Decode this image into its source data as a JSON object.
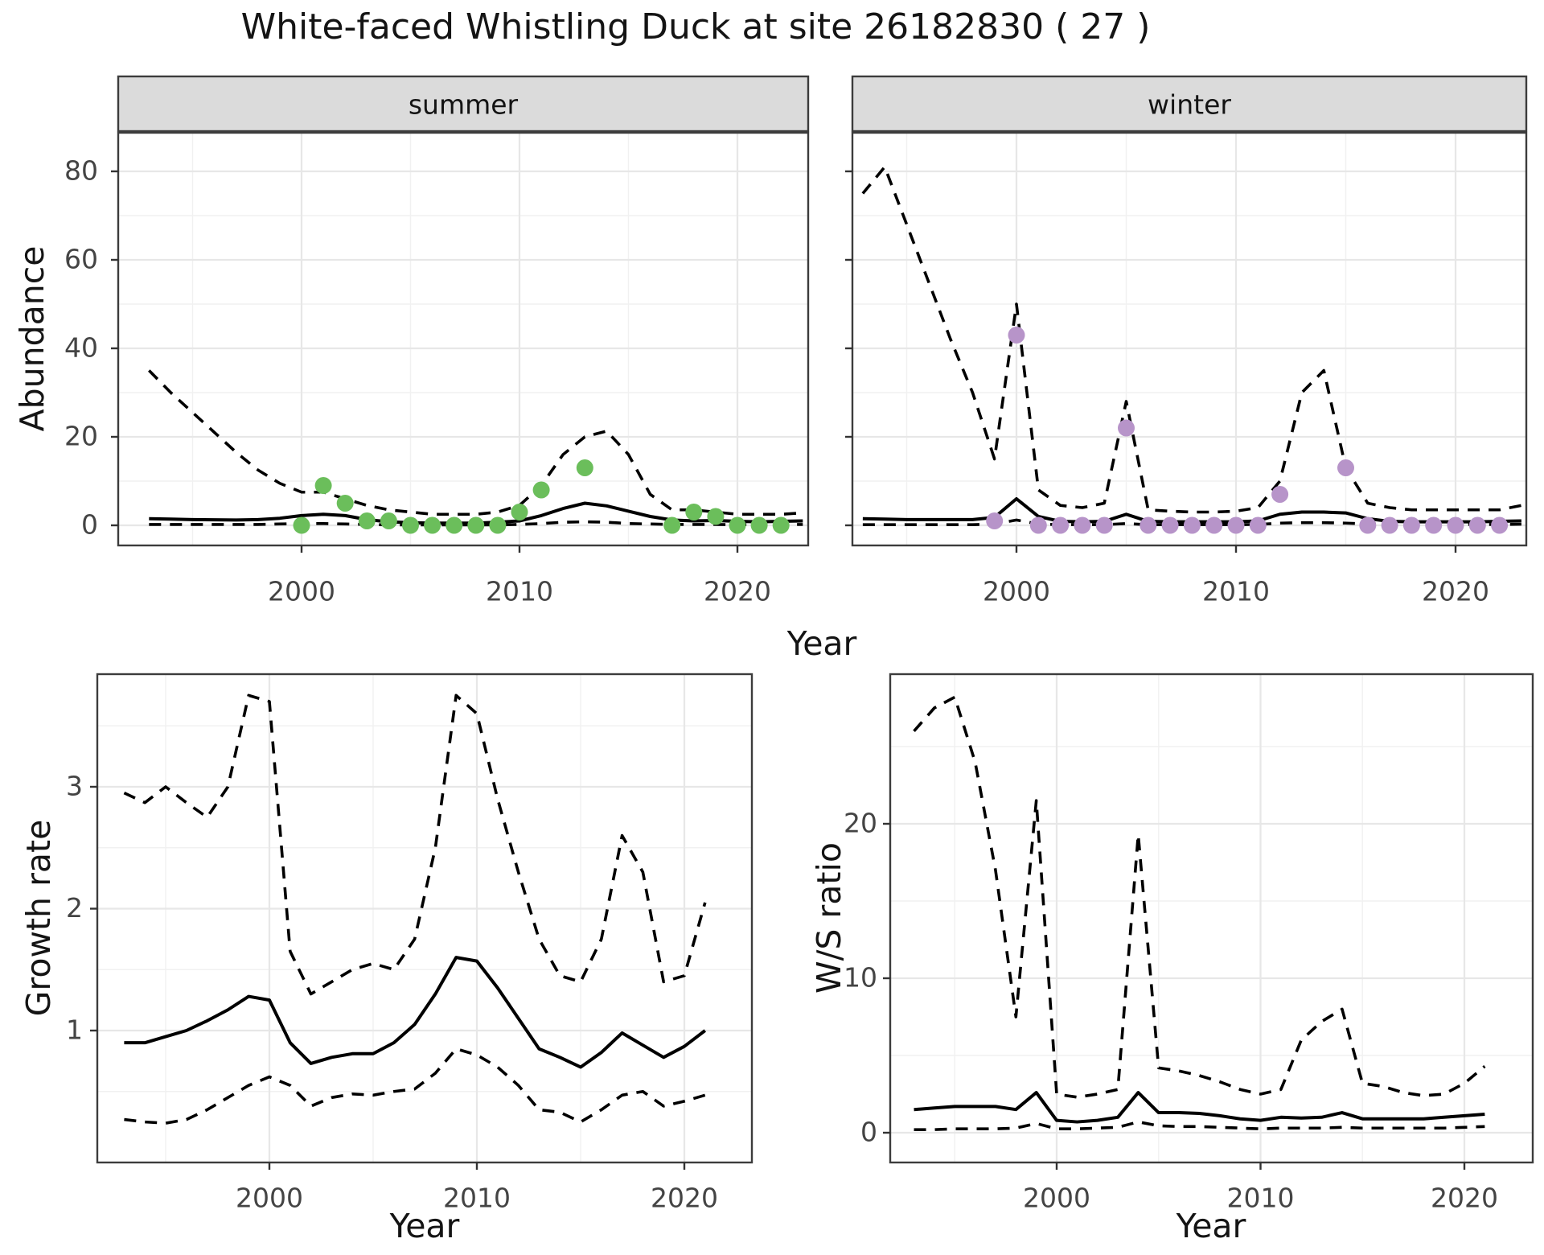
{
  "title": "White-faced Whistling Duck at site 26182830 ( 27 )",
  "colors": {
    "summer_point": "#6BBE5B",
    "winter_point": "#B794C9",
    "line": "#000000",
    "grid_major": "#E7E7E7",
    "grid_minor": "#F1F1F1",
    "strip_bg": "#DBDBDB",
    "panel_border": "#3C3C3C",
    "tick_text": "#444444",
    "title_text": "#141414"
  },
  "labels": {
    "abundance_y": "Abundance",
    "top_x": "Year",
    "growth_y": "Growth rate",
    "growth_x": "Year",
    "ws_y": "W/S ratio",
    "ws_x": "Year"
  },
  "chart_data": [
    {
      "type": "line",
      "name": "abundance-summer",
      "facet_label": "summer",
      "xlabel": "Year",
      "ylabel": "Abundance",
      "x_ticks": [
        2000,
        2010,
        2020
      ],
      "x_minor_ticks": [
        1995,
        2005,
        2015
      ],
      "y_ticks": [
        0,
        20,
        40,
        60,
        80
      ],
      "y_minor_ticks": [
        10,
        30,
        50,
        70
      ],
      "xlim": [
        1991.6,
        2023.2
      ],
      "ylim": [
        -4.5,
        88.7
      ],
      "x": [
        1993,
        1994,
        1995,
        1996,
        1997,
        1998,
        1999,
        2000,
        2001,
        2002,
        2003,
        2004,
        2005,
        2006,
        2007,
        2008,
        2009,
        2010,
        2011,
        2012,
        2013,
        2014,
        2015,
        2016,
        2017,
        2018,
        2019,
        2020,
        2021,
        2022,
        2023
      ],
      "series": [
        {
          "name": "upper-ci",
          "style": "dashed",
          "values": [
            35,
            30,
            25.5,
            21,
            16.5,
            12.5,
            9.5,
            7.5,
            7.5,
            6,
            4.5,
            3.5,
            3,
            2.5,
            2.5,
            2.5,
            3,
            4.5,
            9,
            16,
            20,
            21.3,
            16,
            7,
            3.5,
            3.5,
            3,
            2.5,
            2.5,
            2.5,
            2.8
          ]
        },
        {
          "name": "mean",
          "style": "solid",
          "values": [
            1.5,
            1.4,
            1.3,
            1.25,
            1.2,
            1.3,
            1.6,
            2.2,
            2.5,
            2.2,
            1.3,
            0.8,
            0.6,
            0.5,
            0.5,
            0.5,
            0.7,
            1,
            2.2,
            3.8,
            5,
            4.4,
            3.2,
            2,
            1.2,
            1,
            1.1,
            0.9,
            0.8,
            0.9,
            1
          ]
        },
        {
          "name": "lower-ci",
          "style": "dashed",
          "values": [
            0.2,
            0.2,
            0.2,
            0.2,
            0.2,
            0.2,
            0.3,
            0.4,
            0.4,
            0.3,
            0.2,
            0.1,
            0.1,
            0.1,
            0.1,
            0.1,
            0.1,
            0.2,
            0.4,
            0.7,
            0.8,
            0.7,
            0.4,
            0.3,
            0.2,
            0.2,
            0.2,
            0.15,
            0.15,
            0.15,
            0.2
          ]
        }
      ],
      "points": {
        "name": "summer-observations",
        "color": "#6BBE5B",
        "data": [
          [
            2000,
            0
          ],
          [
            2001,
            9
          ],
          [
            2002,
            5
          ],
          [
            2003,
            1
          ],
          [
            2004,
            1
          ],
          [
            2005,
            0
          ],
          [
            2006,
            0
          ],
          [
            2007,
            0
          ],
          [
            2008,
            0
          ],
          [
            2009,
            0
          ],
          [
            2010,
            3
          ],
          [
            2011,
            8
          ],
          [
            2013,
            13
          ],
          [
            2017,
            0
          ],
          [
            2018,
            3
          ],
          [
            2019,
            2
          ],
          [
            2020,
            0
          ],
          [
            2021,
            0
          ],
          [
            2022,
            0
          ]
        ]
      }
    },
    {
      "type": "line",
      "name": "abundance-winter",
      "facet_label": "winter",
      "xlabel": "Year",
      "ylabel": "Abundance",
      "x_ticks": [
        2000,
        2010,
        2020
      ],
      "x_minor_ticks": [
        1995,
        2005,
        2015
      ],
      "y_ticks": [
        0,
        20,
        40,
        60,
        80
      ],
      "y_minor_ticks": [
        10,
        30,
        50,
        70
      ],
      "xlim": [
        1992.5,
        2023.2
      ],
      "ylim": [
        -4.5,
        88.7
      ],
      "x": [
        1993,
        1994,
        1995,
        1996,
        1997,
        1998,
        1999,
        2000,
        2001,
        2002,
        2003,
        2004,
        2005,
        2006,
        2007,
        2008,
        2009,
        2010,
        2011,
        2012,
        2013,
        2014,
        2015,
        2016,
        2017,
        2018,
        2019,
        2020,
        2021,
        2022,
        2023
      ],
      "series": [
        {
          "name": "upper-ci",
          "style": "dashed",
          "values": [
            75,
            81,
            68,
            55,
            42,
            30,
            15,
            50,
            8,
            4.5,
            4,
            5,
            28,
            3.5,
            3.2,
            3,
            3,
            3.2,
            4,
            10,
            30,
            35,
            13,
            5,
            4,
            3.5,
            3.5,
            3.5,
            3.5,
            3.5,
            4.5
          ]
        },
        {
          "name": "mean",
          "style": "solid",
          "values": [
            1.5,
            1.4,
            1.3,
            1.3,
            1.3,
            1.3,
            1.8,
            6,
            2,
            0.9,
            0.8,
            0.9,
            2.5,
            0.9,
            0.8,
            0.8,
            0.8,
            0.8,
            1,
            2.5,
            3,
            3,
            2.8,
            1.5,
            0.9,
            0.8,
            0.8,
            0.8,
            0.8,
            0.9,
            1
          ]
        },
        {
          "name": "lower-ci",
          "style": "dashed",
          "values": [
            0.15,
            0.15,
            0.15,
            0.15,
            0.15,
            0.15,
            0.3,
            1.2,
            0.3,
            0.15,
            0.15,
            0.15,
            0.4,
            0.15,
            0.15,
            0.15,
            0.15,
            0.15,
            0.2,
            0.5,
            0.6,
            0.6,
            0.5,
            0.3,
            0.2,
            0.2,
            0.2,
            0.2,
            0.2,
            0.2,
            0.25
          ]
        }
      ],
      "points": {
        "name": "winter-observations",
        "color": "#B794C9",
        "data": [
          [
            1999,
            1
          ],
          [
            2000,
            43
          ],
          [
            2001,
            0
          ],
          [
            2002,
            0
          ],
          [
            2003,
            0
          ],
          [
            2004,
            0
          ],
          [
            2005,
            22
          ],
          [
            2006,
            0
          ],
          [
            2007,
            0
          ],
          [
            2008,
            0
          ],
          [
            2009,
            0
          ],
          [
            2010,
            0
          ],
          [
            2011,
            0
          ],
          [
            2012,
            7
          ],
          [
            2015,
            13
          ],
          [
            2016,
            0
          ],
          [
            2017,
            0
          ],
          [
            2018,
            0
          ],
          [
            2019,
            0
          ],
          [
            2020,
            0
          ],
          [
            2021,
            0
          ],
          [
            2022,
            0
          ]
        ]
      }
    },
    {
      "type": "line",
      "name": "growth-rate",
      "facet_label": "",
      "xlabel": "Year",
      "ylabel": "Growth rate",
      "x_ticks": [
        2000,
        2010,
        2020
      ],
      "x_minor_ticks": [
        1995,
        2005,
        2015
      ],
      "y_ticks": [
        1,
        2,
        3
      ],
      "y_minor_ticks": [
        0.5,
        1.5,
        2.5,
        3.5
      ],
      "xlim": [
        1991.7,
        2023.3
      ],
      "ylim": [
        -0.08,
        3.93
      ],
      "x": [
        1993,
        1994,
        1995,
        1996,
        1997,
        1998,
        1999,
        2000,
        2001,
        2002,
        2003,
        2004,
        2005,
        2006,
        2007,
        2008,
        2009,
        2010,
        2011,
        2012,
        2013,
        2014,
        2015,
        2016,
        2017,
        2018,
        2019,
        2020,
        2021
      ],
      "series": [
        {
          "name": "upper-ci",
          "style": "dashed",
          "values": [
            2.95,
            2.87,
            3,
            2.87,
            2.75,
            3,
            3.75,
            3.7,
            1.65,
            1.3,
            1.4,
            1.5,
            1.55,
            1.5,
            1.75,
            2.5,
            3.75,
            3.6,
            2.9,
            2.3,
            1.75,
            1.45,
            1.4,
            1.75,
            2.6,
            2.3,
            1.4,
            1.45,
            2.05
          ]
        },
        {
          "name": "mean",
          "style": "solid",
          "values": [
            0.9,
            0.9,
            0.95,
            1,
            1.08,
            1.17,
            1.28,
            1.25,
            0.9,
            0.73,
            0.78,
            0.81,
            0.81,
            0.9,
            1.05,
            1.3,
            1.6,
            1.57,
            1.35,
            1.1,
            0.85,
            0.78,
            0.7,
            0.82,
            0.98,
            0.88,
            0.78,
            0.87,
            1
          ]
        },
        {
          "name": "lower-ci",
          "style": "dashed",
          "values": [
            0.27,
            0.25,
            0.24,
            0.27,
            0.35,
            0.45,
            0.55,
            0.62,
            0.55,
            0.38,
            0.45,
            0.48,
            0.47,
            0.5,
            0.52,
            0.65,
            0.85,
            0.8,
            0.7,
            0.55,
            0.35,
            0.33,
            0.25,
            0.35,
            0.47,
            0.5,
            0.38,
            0.42,
            0.47
          ]
        }
      ],
      "points": null
    },
    {
      "type": "line",
      "name": "ws-ratio",
      "facet_label": "",
      "xlabel": "Year",
      "ylabel": "W/S ratio",
      "x_ticks": [
        2000,
        2010,
        2020
      ],
      "x_minor_ticks": [
        1995,
        2005,
        2015
      ],
      "y_ticks": [
        0,
        10,
        20
      ],
      "y_minor_ticks": [
        5,
        15,
        25
      ],
      "xlim": [
        1991.8,
        2023.5
      ],
      "ylim": [
        -1.9,
        29.7
      ],
      "x": [
        1993,
        1994,
        1995,
        1996,
        1997,
        1998,
        1999,
        2000,
        2001,
        2002,
        2003,
        2004,
        2005,
        2006,
        2007,
        2008,
        2009,
        2010,
        2011,
        2012,
        2013,
        2014,
        2015,
        2016,
        2017,
        2018,
        2019,
        2020,
        2021
      ],
      "series": [
        {
          "name": "upper-ci",
          "style": "dashed",
          "values": [
            26,
            27.5,
            28.2,
            24,
            17,
            7.5,
            21.5,
            2.5,
            2.3,
            2.5,
            2.8,
            19.3,
            4.2,
            4,
            3.7,
            3.3,
            2.8,
            2.5,
            2.8,
            6,
            7.2,
            8,
            3.2,
            3,
            2.6,
            2.4,
            2.5,
            3.2,
            4.3
          ]
        },
        {
          "name": "mean",
          "style": "solid",
          "values": [
            1.5,
            1.6,
            1.7,
            1.7,
            1.7,
            1.5,
            2.6,
            0.8,
            0.7,
            0.8,
            1,
            2.6,
            1.3,
            1.3,
            1.25,
            1.1,
            0.9,
            0.8,
            1,
            0.95,
            1,
            1.3,
            0.9,
            0.9,
            0.9,
            0.9,
            1,
            1.1,
            1.2
          ]
        },
        {
          "name": "lower-ci",
          "style": "dashed",
          "values": [
            0.2,
            0.2,
            0.25,
            0.25,
            0.25,
            0.3,
            0.6,
            0.25,
            0.25,
            0.3,
            0.35,
            0.7,
            0.45,
            0.4,
            0.4,
            0.35,
            0.3,
            0.25,
            0.3,
            0.3,
            0.3,
            0.35,
            0.3,
            0.3,
            0.3,
            0.3,
            0.3,
            0.35,
            0.4
          ]
        }
      ],
      "points": null
    }
  ]
}
